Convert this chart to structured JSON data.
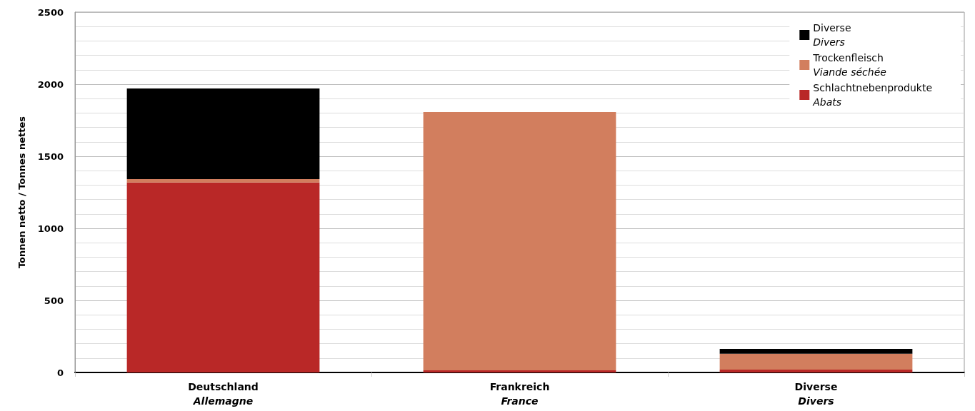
{
  "chart_data": {
    "type": "bar",
    "stacked": true,
    "ylabel": "Tonnen netto / Tonnes nettes",
    "categories": [
      "Deutschland\nAllemagne",
      "Frankreich\nFrance",
      "Diverse\nDivers"
    ],
    "series": [
      {
        "name": "Schlachtnebenprodukte\nAbats",
        "color": "#b92827",
        "values": [
          1318,
          15,
          20
        ]
      },
      {
        "name": "Trockenfleisch\nViande séchée",
        "color": "#d27e5e",
        "values": [
          23,
          1792,
          110
        ]
      },
      {
        "name": "Diverse\nDivers",
        "color": "#000000",
        "values": [
          629,
          0,
          33
        ]
      }
    ],
    "ylim": [
      0,
      2500
    ],
    "yticks": [
      0,
      500,
      1000,
      1500,
      2000,
      2500
    ],
    "grid": true,
    "legend": "top right"
  }
}
